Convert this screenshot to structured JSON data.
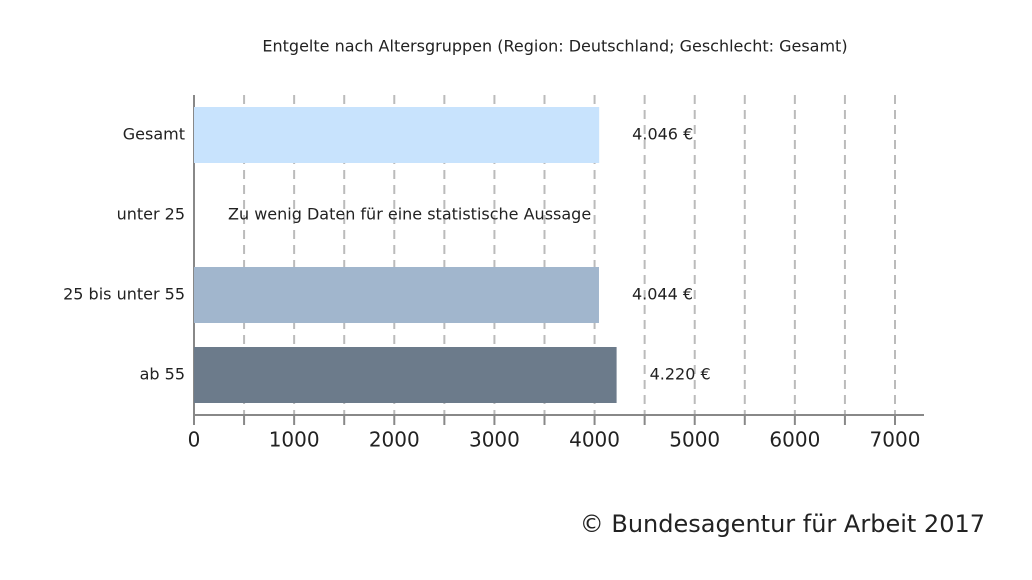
{
  "chart_data": {
    "type": "hbar",
    "title": "Entgelte nach Altersgruppen (Region: Deutschland; Geschlecht: Gesamt)",
    "categories": [
      "Gesamt",
      "unter 25",
      "25 bis unter 55",
      "ab 55"
    ],
    "values": [
      4046,
      null,
      4044,
      4220
    ],
    "value_labels": [
      "4.046 €",
      null,
      "4.044 €",
      "4.220 €"
    ],
    "colors": [
      "#c8e3fd",
      null,
      "#a1b6cd",
      "#6c7b8b"
    ],
    "no_data_label": "Zu wenig Daten für eine statistische Aussage",
    "xlim": [
      0,
      7000
    ],
    "xticks": [
      0,
      1000,
      2000,
      3000,
      4000,
      5000,
      6000,
      7000
    ],
    "minor_xticks": [
      500,
      1500,
      2500,
      3500,
      4500,
      5500,
      6500
    ],
    "grid": true,
    "source": "© Bundesagentur für Arbeit 2017"
  }
}
